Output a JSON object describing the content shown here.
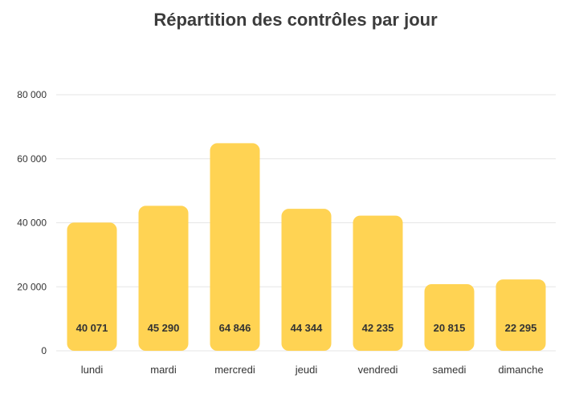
{
  "chart_data": {
    "type": "bar",
    "title": "Répartition des contrôles par jour",
    "xlabel": "",
    "ylabel": "",
    "categories": [
      "lundi",
      "mardi",
      "mercredi",
      "jeudi",
      "vendredi",
      "samedi",
      "dimanche"
    ],
    "values": [
      40071,
      45290,
      64846,
      44344,
      42235,
      20815,
      22295
    ],
    "value_labels": [
      "40 071",
      "45 290",
      "64 846",
      "44 344",
      "42 235",
      "20 815",
      "22 295"
    ],
    "ylim": [
      0,
      80000
    ],
    "y_ticks": [
      0,
      20000,
      40000,
      60000,
      80000
    ],
    "y_tick_labels": [
      "0",
      "20 000",
      "40 000",
      "60 000",
      "80 000"
    ],
    "grid": true,
    "legend": "none",
    "colors": {
      "bar": "#FFD353",
      "gridline": "#e6e6e6",
      "axis_text": "#333333",
      "value_label": "#333333",
      "title": "#3c3c3c"
    }
  }
}
